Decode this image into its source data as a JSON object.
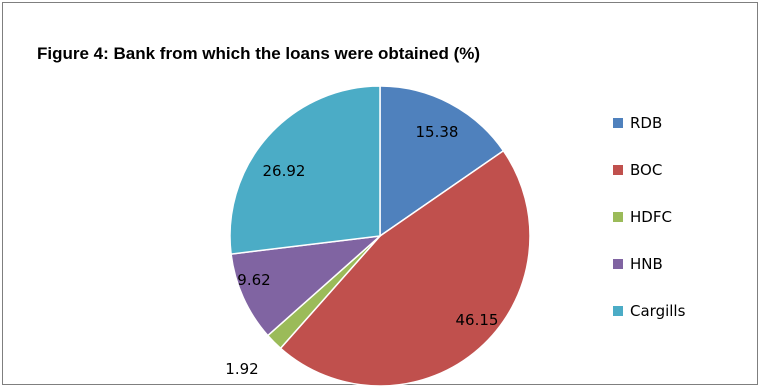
{
  "chart_data": {
    "type": "pie",
    "title": "Figure 4: Bank from which the loans were obtained (%)",
    "categories": [
      "RDB",
      "BOC",
      "HDFC",
      "HNB",
      "Cargills"
    ],
    "values": [
      15.38,
      46.15,
      1.92,
      9.62,
      26.92
    ],
    "data_labels": [
      "15.38",
      "46.15",
      "1.92",
      "9.62",
      "26.92"
    ],
    "colors": [
      "#4f81bd",
      "#c0504d",
      "#9bbb59",
      "#8064a2",
      "#4bacc6"
    ],
    "legend": {
      "placement": "right"
    }
  }
}
